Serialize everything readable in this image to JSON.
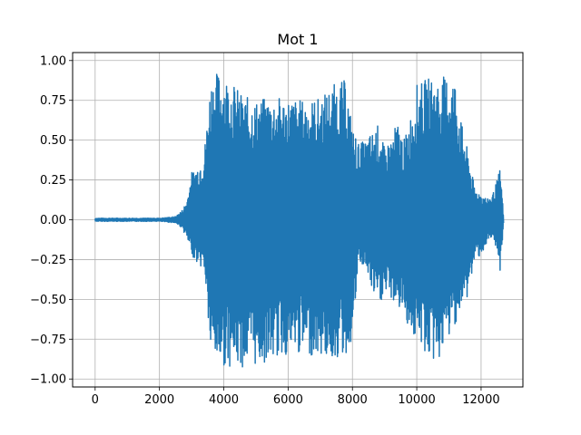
{
  "chart_data": {
    "type": "line",
    "title": "Mot 1",
    "xlabel": "",
    "ylabel": "",
    "xlim": [
      -700,
      13300
    ],
    "ylim": [
      -1.05,
      1.05
    ],
    "xticks": [
      0,
      2000,
      4000,
      6000,
      8000,
      10000,
      12000
    ],
    "xtick_labels": [
      "0",
      "2000",
      "4000",
      "6000",
      "8000",
      "10000",
      "12000"
    ],
    "yticks": [
      -1.0,
      -0.75,
      -0.5,
      -0.25,
      0.0,
      0.25,
      0.5,
      0.75,
      1.0
    ],
    "ytick_labels": [
      "−1.00",
      "−0.75",
      "−0.50",
      "−0.25",
      "0.00",
      "0.25",
      "0.50",
      "0.75",
      "1.00"
    ],
    "grid": true,
    "series": [
      {
        "color": "#1f77b4",
        "n_samples": 12700,
        "envelope_x": [
          0,
          500,
          1000,
          1500,
          2000,
          2500,
          2700,
          2850,
          3000,
          3200,
          3400,
          3600,
          3800,
          4000,
          4200,
          4600,
          5000,
          5400,
          5800,
          6200,
          6600,
          7000,
          7400,
          7800,
          8000,
          8200,
          8400,
          8600,
          8800,
          9000,
          9200,
          9400,
          9600,
          9800,
          10000,
          10200,
          10400,
          10600,
          10800,
          11000,
          11200,
          11400,
          11600,
          11800,
          12000,
          12200,
          12400,
          12600,
          12700
        ],
        "envelope_upper": [
          0.01,
          0.01,
          0.01,
          0.01,
          0.01,
          0.02,
          0.06,
          0.12,
          0.3,
          0.35,
          0.45,
          0.9,
          0.93,
          0.92,
          0.88,
          0.78,
          0.75,
          0.77,
          0.77,
          0.76,
          0.75,
          0.77,
          0.85,
          0.88,
          0.58,
          0.48,
          0.5,
          0.55,
          0.6,
          0.45,
          0.52,
          0.62,
          0.5,
          0.65,
          0.85,
          0.87,
          0.9,
          0.88,
          0.9,
          0.91,
          0.89,
          0.6,
          0.42,
          0.2,
          0.17,
          0.13,
          0.18,
          0.33,
          0.02
        ],
        "envelope_lower": [
          -0.01,
          -0.01,
          -0.01,
          -0.01,
          -0.01,
          -0.02,
          -0.05,
          -0.12,
          -0.22,
          -0.28,
          -0.32,
          -0.88,
          -0.9,
          -0.92,
          -0.92,
          -0.93,
          -0.92,
          -0.89,
          -0.86,
          -0.85,
          -0.85,
          -0.86,
          -0.88,
          -0.86,
          -0.75,
          -0.28,
          -0.3,
          -0.45,
          -0.55,
          -0.48,
          -0.5,
          -0.55,
          -0.6,
          -0.7,
          -0.78,
          -0.82,
          -0.89,
          -0.9,
          -0.85,
          -0.75,
          -0.65,
          -0.58,
          -0.48,
          -0.25,
          -0.22,
          -0.15,
          -0.13,
          -0.33,
          -0.02
        ]
      }
    ]
  }
}
